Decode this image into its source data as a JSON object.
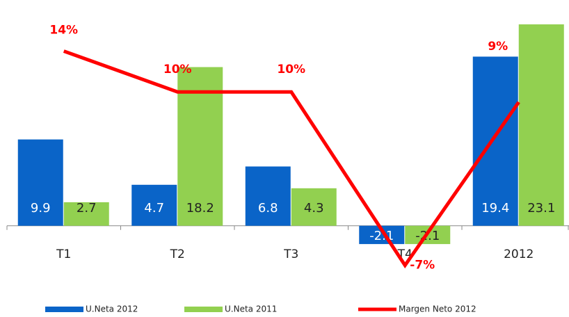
{
  "chart_data": {
    "type": "bar",
    "categories": [
      "T1",
      "T2",
      "T3",
      "T4",
      "2012"
    ],
    "ylim": [
      -6,
      24.3
    ],
    "y2lim": [
      -8.25,
      17.65
    ],
    "legend": "bottom",
    "series": [
      {
        "name": "U.Neta 2012",
        "color": "#0a64c8",
        "values": [
          9.9,
          4.7,
          6.8,
          -2.1,
          19.4
        ]
      },
      {
        "name": "U.Neta 2011",
        "color": "#92d050",
        "values": [
          2.7,
          18.2,
          4.3,
          -2.1,
          23.1
        ]
      },
      {
        "name": "Margen Neto 2012",
        "type": "line",
        "axis": "y2",
        "color": "#ff0000",
        "values": [
          14,
          10,
          10,
          -7,
          9
        ],
        "value_labels": [
          "14%",
          "10%",
          "10%",
          "-7%",
          "9%"
        ]
      }
    ]
  }
}
